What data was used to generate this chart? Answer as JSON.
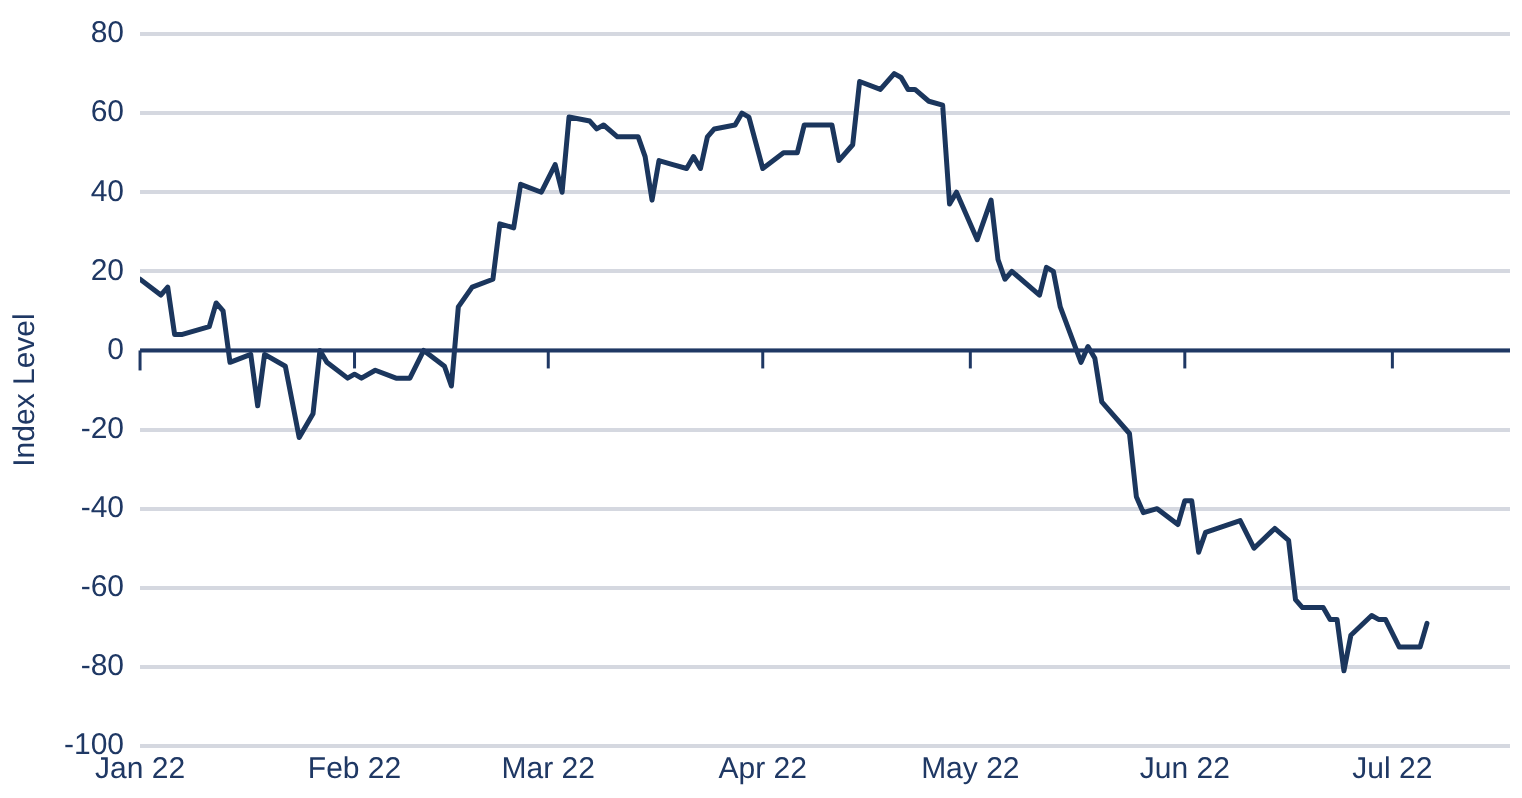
{
  "chart_data": {
    "type": "line",
    "ylabel": "Index Level",
    "x": [
      "2022-01-01",
      "2022-01-04",
      "2022-01-05",
      "2022-01-06",
      "2022-01-07",
      "2022-01-11",
      "2022-01-12",
      "2022-01-13",
      "2022-01-14",
      "2022-01-17",
      "2022-01-18",
      "2022-01-19",
      "2022-01-22",
      "2022-01-24",
      "2022-01-26",
      "2022-01-27",
      "2022-01-28",
      "2022-01-31",
      "2022-02-01",
      "2022-02-02",
      "2022-02-04",
      "2022-02-07",
      "2022-02-09",
      "2022-02-11",
      "2022-02-14",
      "2022-02-15",
      "2022-02-16",
      "2022-02-18",
      "2022-02-21",
      "2022-02-22",
      "2022-02-24",
      "2022-02-25",
      "2022-02-28",
      "2022-03-02",
      "2022-03-03",
      "2022-03-04",
      "2022-03-07",
      "2022-03-08",
      "2022-03-09",
      "2022-03-11",
      "2022-03-14",
      "2022-03-15",
      "2022-03-16",
      "2022-03-17",
      "2022-03-19",
      "2022-03-21",
      "2022-03-22",
      "2022-03-23",
      "2022-03-24",
      "2022-03-25",
      "2022-03-28",
      "2022-03-29",
      "2022-03-30",
      "2022-04-01",
      "2022-04-04",
      "2022-04-06",
      "2022-04-07",
      "2022-04-11",
      "2022-04-12",
      "2022-04-14",
      "2022-04-15",
      "2022-04-18",
      "2022-04-20",
      "2022-04-21",
      "2022-04-22",
      "2022-04-23",
      "2022-04-25",
      "2022-04-27",
      "2022-04-28",
      "2022-04-29",
      "2022-05-02",
      "2022-05-04",
      "2022-05-05",
      "2022-05-06",
      "2022-05-07",
      "2022-05-11",
      "2022-05-12",
      "2022-05-13",
      "2022-05-14",
      "2022-05-17",
      "2022-05-18",
      "2022-05-19",
      "2022-05-20",
      "2022-05-24",
      "2022-05-25",
      "2022-05-26",
      "2022-05-28",
      "2022-05-31",
      "2022-06-01",
      "2022-06-02",
      "2022-06-03",
      "2022-06-04",
      "2022-06-09",
      "2022-06-11",
      "2022-06-14",
      "2022-06-16",
      "2022-06-17",
      "2022-06-18",
      "2022-06-21",
      "2022-06-22",
      "2022-06-23",
      "2022-06-24",
      "2022-06-25",
      "2022-06-28",
      "2022-06-29",
      "2022-06-30",
      "2022-07-02",
      "2022-07-05",
      "2022-07-06"
    ],
    "series": [
      {
        "color": "#1b365d",
        "values": [
          18,
          14,
          16,
          4,
          4,
          6,
          12,
          10,
          -3,
          -1,
          -14,
          -1,
          -4,
          -22,
          -16,
          0,
          -3,
          -7,
          -6,
          -7,
          -5,
          -7,
          -7,
          0,
          -4,
          -9,
          11,
          16,
          18,
          32,
          31,
          42,
          40,
          47,
          40,
          59,
          58,
          56,
          57,
          54,
          54,
          49,
          38,
          48,
          47,
          46,
          49,
          46,
          54,
          56,
          57,
          60,
          59,
          46,
          50,
          50,
          57,
          57,
          48,
          52,
          68,
          66,
          70,
          69,
          66,
          66,
          63,
          62,
          37,
          40,
          28,
          38,
          23,
          18,
          20,
          14,
          21,
          20,
          11,
          -3,
          1,
          -2,
          -13,
          -21,
          -37,
          -41,
          -40,
          -44,
          -38,
          -38,
          -51,
          -46,
          -43,
          -50,
          -45,
          -48,
          -63,
          -65,
          -65,
          -68,
          -68,
          -81,
          -72,
          -67,
          -68,
          -68,
          -75,
          -75,
          -69
        ]
      }
    ],
    "xlim": [
      "2022-01-01",
      "2022-07-18"
    ],
    "xticks": [
      {
        "value": "2022-01-01",
        "label": "Jan 22"
      },
      {
        "value": "2022-02-01",
        "label": "Feb 22"
      },
      {
        "value": "2022-03-01",
        "label": "Mar 22"
      },
      {
        "value": "2022-04-01",
        "label": "Apr 22"
      },
      {
        "value": "2022-05-01",
        "label": "May 22"
      },
      {
        "value": "2022-06-01",
        "label": "Jun 22"
      },
      {
        "value": "2022-07-01",
        "label": "Jul 22"
      }
    ],
    "ylim": [
      -100,
      80
    ],
    "yticks": [
      -100,
      -80,
      -60,
      -40,
      -20,
      0,
      20,
      40,
      60,
      80
    ],
    "ref_lines": [
      {
        "axis": "y",
        "value": 0,
        "color": "#1f3864"
      }
    ],
    "grid": "y",
    "legend": false,
    "marker": "none",
    "line_style": "solid"
  }
}
